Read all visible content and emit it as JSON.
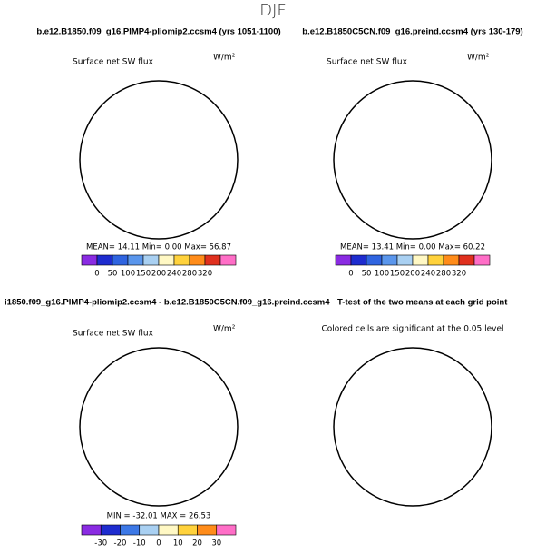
{
  "title": "DJF",
  "panels": [
    {
      "title": "b.e12.B1850.f09_g16.PIMP4-pliomip2.ccsm4 (yrs 1051-1100)",
      "subtitle": "Surface net SW flux",
      "units": "W/m²",
      "stats": "MEAN=  14.11   Min=    0.00   Max=   56.87",
      "colorbar": {
        "labels": [
          0,
          50,
          100,
          150,
          200,
          240,
          280,
          320
        ],
        "colors": [
          "#8a2be2",
          "#1e2ccf",
          "#2f64e0",
          "#5a96ec",
          "#a9d0f2",
          "#fff8c4",
          "#ffd23c",
          "#ff8c1a",
          "#e0301e",
          "#ff6ec7"
        ]
      }
    },
    {
      "title": "b.e12.B1850C5CN.f09_g16.preind.ccsm4 (yrs 130-179)",
      "subtitle": "Surface net SW flux",
      "units": "W/m²",
      "stats": "MEAN=  13.41   Min=    0.00   Max=   60.22",
      "colorbar": {
        "labels": [
          0,
          50,
          100,
          150,
          200,
          240,
          280,
          320
        ],
        "colors": [
          "#8a2be2",
          "#1e2ccf",
          "#2f64e0",
          "#5a96ec",
          "#a9d0f2",
          "#fff8c4",
          "#ffd23c",
          "#ff8c1a",
          "#e0301e",
          "#ff6ec7"
        ]
      }
    },
    {
      "title": "i1850.f09_g16.PIMP4-pliomip2.ccsm4 - b.e12.B1850C5CN.f09_g16.preind.ccsm4",
      "subtitle": "Surface net SW flux",
      "units": "W/m²",
      "stats": "MIN = -32.01  MAX =  26.53",
      "colorbar": {
        "labels": [
          -30,
          -20,
          -10,
          0,
          10,
          20,
          30
        ],
        "colors": [
          "#8a2be2",
          "#1e2ccf",
          "#3c78e6",
          "#a9d0f2",
          "#fff8c4",
          "#ffd23c",
          "#ff8c1a",
          "#ff6ec7"
        ]
      }
    },
    {
      "title": "T-test of the two means at each grid point",
      "subtitle": "Colored cells are significant at the 0.05 level"
    }
  ]
}
